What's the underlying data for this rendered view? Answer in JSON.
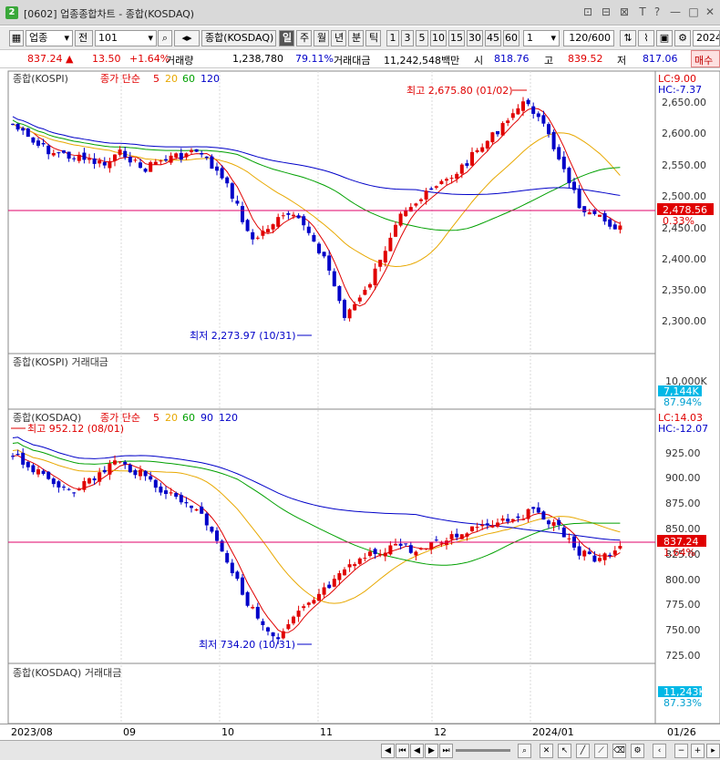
{
  "window": {
    "title": "[0602] 업종종합차트 - 종합(KOSDAQ)",
    "icon_label": "2",
    "buttons": [
      "⊡",
      "⊟",
      "⊠",
      "T",
      "?",
      "—",
      "□",
      "✕"
    ]
  },
  "toolbar": {
    "market_select": "업종",
    "code_prefix": "전",
    "code_value": "101",
    "index_name": "종합(KOSDAQ)",
    "periods": [
      "일",
      "주",
      "월",
      "년",
      "분",
      "틱"
    ],
    "active_period": "일",
    "intervals": [
      "1",
      "3",
      "5",
      "10",
      "15",
      "30",
      "45",
      "60"
    ],
    "interval_value": "1",
    "count_value": "120/600",
    "date_value": "2024/"
  },
  "quote": {
    "price": "837.24",
    "arrow": "▲",
    "change": "13.50",
    "change_pct": "+1.64%",
    "volume_label": "거래량",
    "volume": "1,238,780",
    "volume_ratio": "79.11%",
    "amount_label": "거래대금",
    "amount": "11,242,548백만",
    "open_label": "시",
    "open": "818.76",
    "high_label": "고",
    "high": "839.52",
    "low_label": "저",
    "low": "817.06",
    "trade_button": "매수"
  },
  "panel1": {
    "title": "종합(KOSPI)",
    "ma_label": "종가 단순",
    "ma_periods": [
      "5",
      "20",
      "60",
      "120"
    ],
    "ma_colors": [
      "#e00000",
      "#e8a800",
      "#00a000",
      "#0000c8"
    ],
    "lc": "LC:9.00",
    "hc": "HC:-7.37",
    "yticks": [
      "2,650.00",
      "2,600.00",
      "2,550.00",
      "2,500.00",
      "2,450.00",
      "2,400.00",
      "2,350.00",
      "2,300.00"
    ],
    "current": "2,478.56",
    "current_pct": "0.33%",
    "high_note": "최고 2,675.80 (01/02)",
    "low_note": "최저 2,273.97 (10/31)"
  },
  "panel2": {
    "title": "종합(KOSPI) 거래대금",
    "ytick": "10,000K",
    "current": "7,144K",
    "current_pct": "87.94%"
  },
  "panel3": {
    "title": "종합(KOSDAQ)",
    "ma_label": "종가 단순",
    "ma_periods": [
      "5",
      "20",
      "60",
      "90",
      "120"
    ],
    "ma_colors": [
      "#e00000",
      "#e8a800",
      "#00a000",
      "#0000c8",
      "#0000c8"
    ],
    "lc": "LC:14.03",
    "hc": "HC:-12.07",
    "yticks": [
      "925.00",
      "900.00",
      "875.00",
      "850.00",
      "825.00",
      "800.00",
      "775.00",
      "750.00",
      "725.00"
    ],
    "current": "837.24",
    "current_pct": "1.64%",
    "high_note": "최고 952.12 (08/01)",
    "low_note": "최저 734.20 (10/31)"
  },
  "panel4": {
    "title": "종합(KOSDAQ) 거래대금",
    "current": "11,243K",
    "current_pct": "87.33%"
  },
  "xaxis": {
    "labels": [
      "2023/08",
      "09",
      "10",
      "11",
      "12",
      "2024/01"
    ],
    "right_label": "01/26"
  },
  "colors": {
    "up": "#e00000",
    "down": "#0000c8",
    "current_line": "#e0006a",
    "price_box": "#e00000",
    "vol_box": "#00b8e6"
  }
}
